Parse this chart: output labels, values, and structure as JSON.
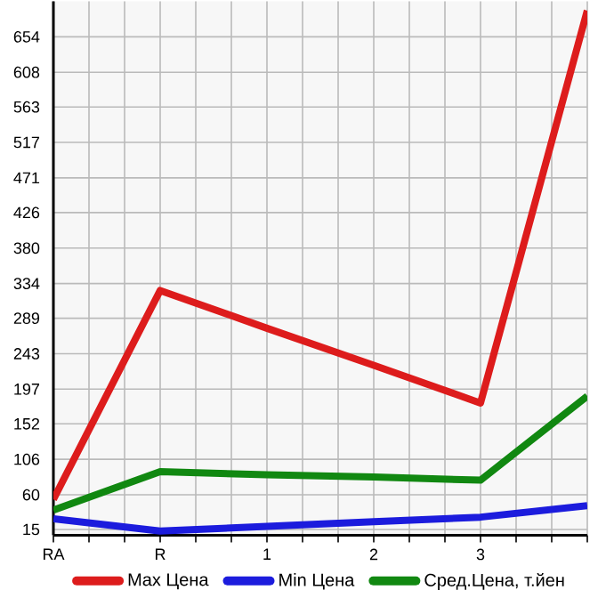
{
  "chart_data": {
    "type": "line",
    "categories": [
      "RA",
      "R",
      "1",
      "2",
      "3",
      null
    ],
    "series": [
      {
        "name": "Max Цена",
        "color": "#dd1c1c",
        "values": [
          54,
          325,
          276,
          228,
          179,
          688
        ]
      },
      {
        "name": "Min Цена",
        "color": "#1c1cdd",
        "values": [
          29,
          13,
          19,
          25,
          31,
          46
        ]
      },
      {
        "name": "Сред.Цена, т.йен",
        "color": "#118811",
        "values": [
          40,
          90,
          86,
          83,
          79,
          188
        ]
      }
    ],
    "ylim": [
      7.5,
      700
    ],
    "yticks": [
      15,
      60,
      106,
      152,
      197,
      243,
      289,
      334,
      380,
      426,
      471,
      517,
      563,
      608,
      654
    ],
    "grid": true,
    "legend": "bottom"
  }
}
